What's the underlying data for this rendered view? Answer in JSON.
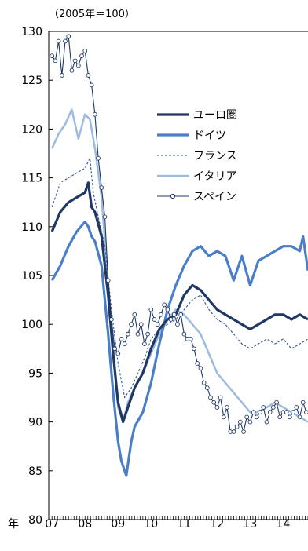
{
  "chart_data": {
    "type": "line",
    "title": "",
    "unit_label": "（2005年＝100）",
    "xlabel": "年",
    "ylabel": "",
    "ylim": [
      80,
      130
    ],
    "y_ticks": [
      "130",
      "125",
      "120",
      "115",
      "110",
      "105",
      "100",
      "95",
      "90",
      "85",
      "80"
    ],
    "x_ticks": [
      "07",
      "08",
      "09",
      "10",
      "11",
      "12",
      "13",
      "14"
    ],
    "x_tick_values": [
      2007,
      2008,
      2009,
      2010,
      2011,
      2012,
      2013,
      2014
    ],
    "xlim": [
      2006.9,
      2014.75
    ],
    "legend_position": "upper-center",
    "series": [
      {
        "name": "ユーロ圏",
        "color": "#1f3864",
        "style": "thick",
        "x": [
          2007.0,
          2007.25,
          2007.5,
          2007.75,
          2008.0,
          2008.1,
          2008.2,
          2008.3,
          2008.5,
          2008.7,
          2008.85,
          2009.0,
          2009.15,
          2009.3,
          2009.5,
          2009.75,
          2010.0,
          2010.25,
          2010.5,
          2010.75,
          2011.0,
          2011.25,
          2011.5,
          2011.75,
          2012.0,
          2012.25,
          2012.5,
          2012.75,
          2013.0,
          2013.25,
          2013.5,
          2013.75,
          2014.0,
          2014.25,
          2014.5,
          2014.75
        ],
        "y": [
          109.5,
          111.5,
          112.5,
          113.0,
          113.5,
          114.5,
          112.0,
          111.5,
          109.0,
          103.0,
          97.0,
          92.0,
          90.0,
          91.5,
          93.5,
          95.0,
          97.5,
          99.5,
          100.5,
          101.0,
          103.0,
          104.0,
          103.5,
          102.5,
          101.5,
          101.0,
          100.5,
          100.0,
          99.5,
          100.0,
          100.5,
          101.0,
          101.0,
          100.5,
          101.0,
          100.5
        ]
      },
      {
        "name": "ドイツ",
        "color": "#4a7fc8",
        "style": "thick",
        "x": [
          2007.0,
          2007.25,
          2007.5,
          2007.75,
          2008.0,
          2008.1,
          2008.2,
          2008.3,
          2008.5,
          2008.7,
          2008.85,
          2009.0,
          2009.1,
          2009.25,
          2009.4,
          2009.5,
          2009.75,
          2010.0,
          2010.25,
          2010.5,
          2010.75,
          2011.0,
          2011.25,
          2011.5,
          2011.75,
          2012.0,
          2012.25,
          2012.5,
          2012.75,
          2013.0,
          2013.25,
          2013.5,
          2013.75,
          2014.0,
          2014.25,
          2014.5,
          2014.6,
          2014.75
        ],
        "y": [
          104.5,
          106.0,
          108.0,
          109.5,
          110.5,
          110.0,
          109.0,
          108.5,
          106.0,
          99.0,
          93.0,
          88.0,
          86.0,
          84.5,
          88.0,
          89.5,
          91.0,
          94.0,
          98.0,
          101.5,
          104.0,
          106.0,
          107.5,
          108.0,
          107.0,
          107.5,
          107.0,
          104.5,
          107.0,
          104.0,
          106.5,
          107.0,
          107.5,
          108.0,
          108.0,
          107.5,
          109.0,
          105.5
        ]
      },
      {
        "name": "フランス",
        "color": "#2f5597",
        "style": "dashed",
        "x": [
          2007.0,
          2007.25,
          2007.5,
          2007.75,
          2008.0,
          2008.15,
          2008.25,
          2008.4,
          2008.6,
          2008.8,
          2009.0,
          2009.2,
          2009.4,
          2009.6,
          2009.8,
          2010.0,
          2010.25,
          2010.5,
          2010.75,
          2011.0,
          2011.25,
          2011.5,
          2011.75,
          2012.0,
          2012.25,
          2012.5,
          2012.75,
          2013.0,
          2013.25,
          2013.5,
          2013.75,
          2014.0,
          2014.25,
          2014.5,
          2014.75
        ],
        "y": [
          112.0,
          114.5,
          115.0,
          115.5,
          116.0,
          117.0,
          113.5,
          111.0,
          108.0,
          101.5,
          96.0,
          92.5,
          93.5,
          95.0,
          96.5,
          98.5,
          99.5,
          100.0,
          100.5,
          101.5,
          102.5,
          103.0,
          101.5,
          100.5,
          100.0,
          99.0,
          98.0,
          97.5,
          98.0,
          98.5,
          98.0,
          98.5,
          97.5,
          98.0,
          98.5
        ]
      },
      {
        "name": "イタリア",
        "color": "#9dbbe0",
        "style": "thick",
        "x": [
          2007.0,
          2007.2,
          2007.4,
          2007.6,
          2007.8,
          2008.0,
          2008.15,
          2008.3,
          2008.5,
          2008.7,
          2008.9,
          2009.0,
          2009.15,
          2009.3,
          2009.5,
          2009.75,
          2010.0,
          2010.25,
          2010.5,
          2010.75,
          2011.0,
          2011.25,
          2011.5,
          2011.75,
          2012.0,
          2012.25,
          2012.5,
          2012.75,
          2013.0,
          2013.25,
          2013.5,
          2013.75,
          2014.0,
          2014.25,
          2014.5,
          2014.75
        ],
        "y": [
          118.0,
          119.5,
          120.5,
          122.0,
          119.0,
          121.5,
          121.0,
          118.0,
          113.0,
          104.0,
          96.0,
          91.5,
          90.0,
          92.0,
          93.5,
          95.0,
          97.0,
          99.0,
          100.5,
          101.5,
          101.0,
          100.0,
          99.0,
          97.0,
          95.0,
          94.0,
          93.0,
          92.0,
          91.0,
          91.0,
          91.5,
          92.0,
          91.5,
          91.0,
          90.5,
          90.0
        ]
      },
      {
        "name": "スペイン",
        "color": "#1f3864",
        "style": "marker",
        "x": [
          2007.0,
          2007.1,
          2007.2,
          2007.3,
          2007.4,
          2007.5,
          2007.6,
          2007.7,
          2007.8,
          2007.9,
          2008.0,
          2008.1,
          2008.2,
          2008.3,
          2008.4,
          2008.5,
          2008.6,
          2008.7,
          2008.8,
          2008.9,
          2009.0,
          2009.1,
          2009.2,
          2009.3,
          2009.4,
          2009.5,
          2009.6,
          2009.7,
          2009.8,
          2009.9,
          2010.0,
          2010.1,
          2010.2,
          2010.3,
          2010.4,
          2010.5,
          2010.6,
          2010.7,
          2010.8,
          2010.9,
          2011.0,
          2011.1,
          2011.2,
          2011.3,
          2011.4,
          2011.5,
          2011.6,
          2011.7,
          2011.8,
          2011.9,
          2012.0,
          2012.1,
          2012.2,
          2012.3,
          2012.4,
          2012.5,
          2012.6,
          2012.7,
          2012.8,
          2012.9,
          2013.0,
          2013.1,
          2013.2,
          2013.3,
          2013.4,
          2013.5,
          2013.6,
          2013.7,
          2013.8,
          2013.9,
          2014.0,
          2014.1,
          2014.2,
          2014.3,
          2014.4,
          2014.5,
          2014.6,
          2014.7
        ],
        "y": [
          127.5,
          127.0,
          129.0,
          125.5,
          129.0,
          129.5,
          126.0,
          127.0,
          126.5,
          127.5,
          128.0,
          125.5,
          124.5,
          121.5,
          117.0,
          114.0,
          111.0,
          104.5,
          100.5,
          97.5,
          97.0,
          98.5,
          98.0,
          99.0,
          100.0,
          101.0,
          99.0,
          100.0,
          98.0,
          99.0,
          101.5,
          100.5,
          100.0,
          101.0,
          102.0,
          101.5,
          100.5,
          101.0,
          100.0,
          101.0,
          99.0,
          98.5,
          98.5,
          97.5,
          96.0,
          95.5,
          94.0,
          93.5,
          92.5,
          92.0,
          91.5,
          92.5,
          90.5,
          91.5,
          89.0,
          89.0,
          89.5,
          90.0,
          89.0,
          90.5,
          90.0,
          91.0,
          90.5,
          91.0,
          91.5,
          90.0,
          91.0,
          91.5,
          92.0,
          90.5,
          91.0,
          91.0,
          90.5,
          91.0,
          91.5,
          90.5,
          92.0,
          91.0
        ]
      }
    ]
  }
}
